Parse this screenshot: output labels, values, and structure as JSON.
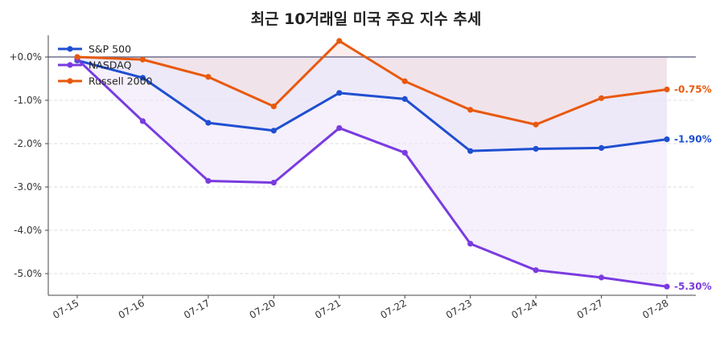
{
  "chart_data": {
    "type": "line",
    "title": "최근 10거래일 미국 주요 지수 추세",
    "xlabel": "",
    "ylabel": "",
    "categories": [
      "07-15",
      "07-16",
      "07-17",
      "07-20",
      "07-21",
      "07-22",
      "07-23",
      "07-24",
      "07-27",
      "07-28"
    ],
    "ylim": [
      -5.5,
      0.5
    ],
    "yticks": [
      0.0,
      -1.0,
      -2.0,
      -3.0,
      -4.0,
      -5.0
    ],
    "ytick_labels": [
      "+0.0%",
      "-1.0%",
      "-2.0%",
      "-3.0%",
      "-4.0%",
      "-5.0%"
    ],
    "grid": "horizontal dashed",
    "legend_position": "top-left",
    "series": [
      {
        "name": "S&P 500",
        "color": "#1f4fd1",
        "fill": "#dfe3f8",
        "values": [
          -0.08,
          -0.48,
          -1.52,
          -1.7,
          -0.83,
          -0.97,
          -2.17,
          -2.12,
          -2.1,
          -1.9
        ],
        "end_label": "-1.90%"
      },
      {
        "name": "NASDAQ",
        "color": "#7a3be0",
        "fill": "#ece3f8",
        "values": [
          -0.05,
          -1.48,
          -2.86,
          -2.9,
          -1.64,
          -2.21,
          -4.31,
          -4.92,
          -5.09,
          -5.3
        ],
        "end_label": "-5.30%"
      },
      {
        "name": "Russell 2000",
        "color": "#e8590c",
        "fill": "#f4dede",
        "values": [
          0.0,
          -0.06,
          -0.46,
          -1.14,
          0.37,
          -0.56,
          -1.22,
          -1.56,
          -0.95,
          -0.75
        ],
        "end_label": "-0.75%"
      }
    ]
  }
}
